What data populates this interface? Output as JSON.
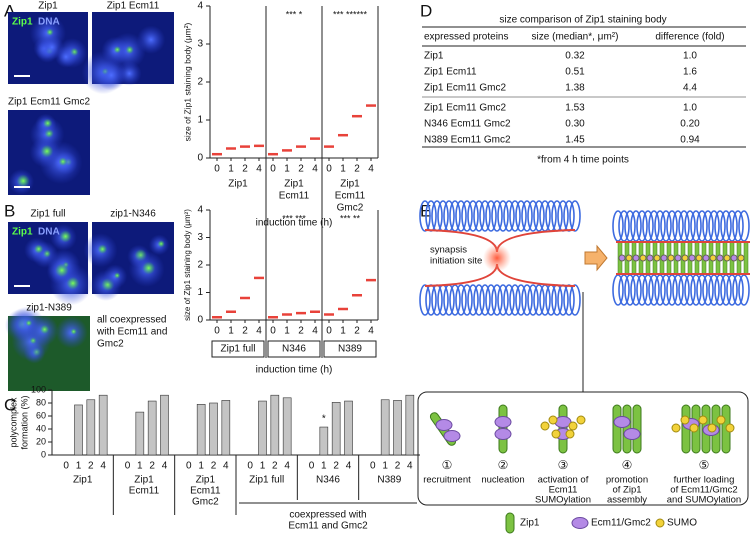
{
  "panels": [
    "A",
    "B",
    "C",
    "D",
    "E"
  ],
  "panel_a": {
    "image_labels": [
      "Zip1",
      "Zip1 Ecm11",
      "Zip1 Ecm11 Gmc2"
    ],
    "stain_labels": [
      "Zip1",
      "DNA"
    ]
  },
  "panel_b": {
    "image_labels": [
      "Zip1 full",
      "zip1-N346",
      "zip1-N389"
    ],
    "stain_labels": [
      "Zip1",
      "DNA"
    ],
    "note": [
      "all coexpressed",
      "with Ecm11 and",
      "Gmc2"
    ]
  },
  "chart_data": [
    {
      "type": "strip",
      "y_label": "size of Zip1 staining body (μm²)",
      "x_label": "induction time (h)",
      "median_color": "#e8423a",
      "ylim": [
        0,
        4
      ],
      "yticks": [
        0,
        1,
        2,
        3,
        4
      ],
      "groups": [
        {
          "name": [
            "Zip1"
          ],
          "categories": [
            "0",
            "1",
            "2",
            "4"
          ],
          "values": [
            0.1,
            0.25,
            0.3,
            0.32
          ]
        },
        {
          "name": [
            "Zip1",
            "Ecm11"
          ],
          "categories": [
            "0",
            "1",
            "2",
            "4"
          ],
          "values": [
            0.1,
            0.2,
            0.3,
            0.51
          ],
          "annotation": "*** *"
        },
        {
          "name": [
            "Zip1",
            "Ecm11",
            "Gmc2"
          ],
          "categories": [
            "0",
            "1",
            "2",
            "4"
          ],
          "values": [
            0.3,
            0.6,
            1.1,
            1.38
          ],
          "annotation": "*** ******"
        }
      ]
    },
    {
      "type": "strip",
      "y_label": "size of Zip1 staining body (μm²)",
      "x_label": "induction time (h)",
      "median_color": "#e8423a",
      "ylim": [
        0,
        4
      ],
      "yticks": [
        0,
        1,
        2,
        3,
        4
      ],
      "groups": [
        {
          "name": [
            "Zip1 full"
          ],
          "categories": [
            "0",
            "1",
            "2",
            "4"
          ],
          "values": [
            0.1,
            0.3,
            0.8,
            1.53
          ]
        },
        {
          "name": [
            "N346"
          ],
          "categories": [
            "0",
            "1",
            "2",
            "4"
          ],
          "values": [
            0.1,
            0.2,
            0.25,
            0.3
          ],
          "annotation": "*** ***"
        },
        {
          "name": [
            "N389"
          ],
          "categories": [
            "0",
            "1",
            "2",
            "4"
          ],
          "values": [
            0.2,
            0.4,
            0.9,
            1.45
          ],
          "annotation": "*** **"
        }
      ]
    },
    {
      "type": "bar",
      "y_label": [
        "polycomplex",
        "formation (%)"
      ],
      "color": "#c4c4c4",
      "ylim": [
        0,
        100
      ],
      "yticks": [
        0,
        20,
        40,
        60,
        80,
        100
      ],
      "bracket_label": [
        "coexpressed with",
        "Ecm11 and Gmc2"
      ],
      "groups": [
        {
          "name": [
            "Zip1"
          ],
          "categories": [
            "0",
            "1",
            "2",
            "4"
          ],
          "values": [
            0,
            77,
            85,
            92
          ]
        },
        {
          "name": [
            "Zip1",
            "Ecm11"
          ],
          "categories": [
            "0",
            "1",
            "2",
            "4"
          ],
          "values": [
            0,
            66,
            83,
            92
          ]
        },
        {
          "name": [
            "Zip1",
            "Ecm11",
            "Gmc2"
          ],
          "categories": [
            "0",
            "1",
            "2",
            "4"
          ],
          "values": [
            0,
            78,
            80,
            84
          ]
        },
        {
          "name": [
            "Zip1 full"
          ],
          "categories": [
            "0",
            "1",
            "2",
            "4"
          ],
          "values": [
            0,
            83,
            92,
            88
          ]
        },
        {
          "name": [
            "N346"
          ],
          "categories": [
            "0",
            "1",
            "2",
            "4"
          ],
          "values": [
            0,
            43,
            81,
            83
          ],
          "annotation": "*"
        },
        {
          "name": [
            "N389"
          ],
          "categories": [
            "0",
            "1",
            "2",
            "4"
          ],
          "values": [
            0,
            85,
            84,
            92
          ]
        }
      ]
    }
  ],
  "table": {
    "title": "size comparison of Zip1 staining body",
    "header": [
      "expressed proteins",
      "size (median*, μm²)",
      "difference (fold)"
    ],
    "rows": [
      [
        "Zip1",
        "0.32",
        "1.0"
      ],
      [
        "Zip1 Ecm11",
        "0.51",
        "1.6"
      ],
      [
        "Zip1 Ecm11 Gmc2",
        "1.38",
        "4.4"
      ],
      [
        "Zip1 Ecm11 Gmc2",
        "1.53",
        "1.0"
      ],
      [
        "N346 Ecm11 Gmc2",
        "0.30",
        "0.20"
      ],
      [
        "N389 Ecm11 Gmc2",
        "1.45",
        "0.94"
      ]
    ],
    "footnote": "*from 4 h time points"
  },
  "panel_e": {
    "site_label": [
      "synapsis",
      "initiation site"
    ],
    "steps": [
      {
        "number": "①",
        "label": [
          "recruitment"
        ]
      },
      {
        "number": "②",
        "label": [
          "nucleation"
        ]
      },
      {
        "number": "③",
        "label": [
          "activation of",
          "Ecm11",
          "SUMOylation"
        ]
      },
      {
        "number": "④",
        "label": [
          "promotion",
          "of Zip1",
          "assembly"
        ]
      },
      {
        "number": "⑤",
        "label": [
          "further loading",
          "of Ecm11/Gmc2",
          "and SUMOylation"
        ]
      }
    ],
    "legend": [
      "Zip1",
      "Ecm11/Gmc2",
      "SUMO"
    ]
  }
}
